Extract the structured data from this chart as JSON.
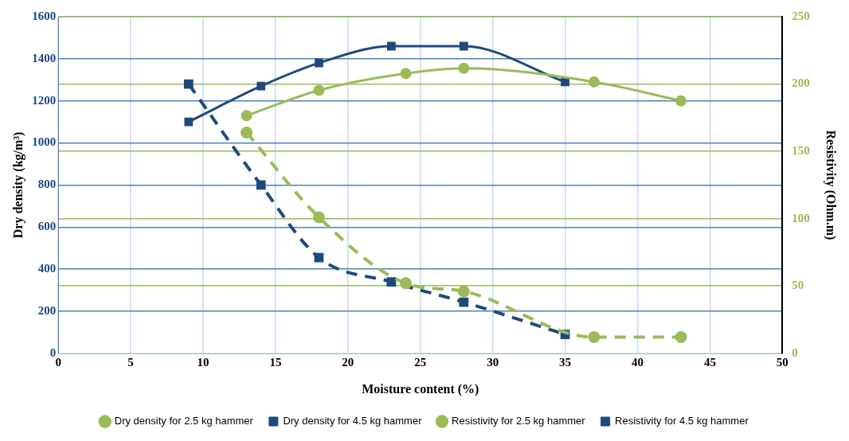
{
  "chart_data": {
    "type": "line",
    "xlabel": "Moisture content (%)",
    "ylabel": "Dry density (kg/m³)",
    "y2label": "Resistivity (Ohm.m)",
    "xlim": [
      0,
      50
    ],
    "xticks": [
      0,
      5,
      10,
      15,
      20,
      25,
      30,
      35,
      40,
      45,
      50
    ],
    "ylim": [
      0,
      1600
    ],
    "yticks": [
      0,
      200,
      400,
      600,
      800,
      1000,
      1200,
      1400,
      1600
    ],
    "y2lim": [
      0,
      250
    ],
    "y2ticks": [
      0,
      50,
      100,
      150,
      200,
      250
    ],
    "grid": true,
    "legend": "bottom",
    "series": [
      {
        "name": "Dry density for 2.5 kg hammer",
        "color": "#9bbb59",
        "marker": "circle",
        "line_style": "solid",
        "x": [
          13,
          18,
          24,
          28,
          37,
          43
        ],
        "values": [
          1130,
          1250,
          1330,
          1355,
          1290,
          1200
        ]
      },
      {
        "name": "Dry density for 4.5 kg hammer",
        "color": "#1f497d",
        "marker": "square",
        "line_style": "solid",
        "x": [
          9,
          14,
          18,
          23,
          28,
          35
        ],
        "values": [
          1100,
          1270,
          1380,
          1460,
          1460,
          1290
        ]
      },
      {
        "name": "Resistivity for 2.5 kg hammer",
        "color": "#9bbb59",
        "marker": "circle",
        "line_style": "dashed",
        "axis": "y2",
        "x": [
          13,
          18,
          24,
          28,
          37,
          43
        ],
        "values": [
          164,
          101,
          52,
          46,
          12,
          12
        ]
      },
      {
        "name": "Resistivity for 4.5 kg hammer",
        "color": "#1f497d",
        "marker": "square",
        "line_style": "dashed",
        "axis": "y2",
        "x": [
          9,
          14,
          18,
          23,
          28,
          35
        ],
        "values": [
          200,
          125,
          71,
          53,
          38,
          14
        ]
      }
    ]
  }
}
